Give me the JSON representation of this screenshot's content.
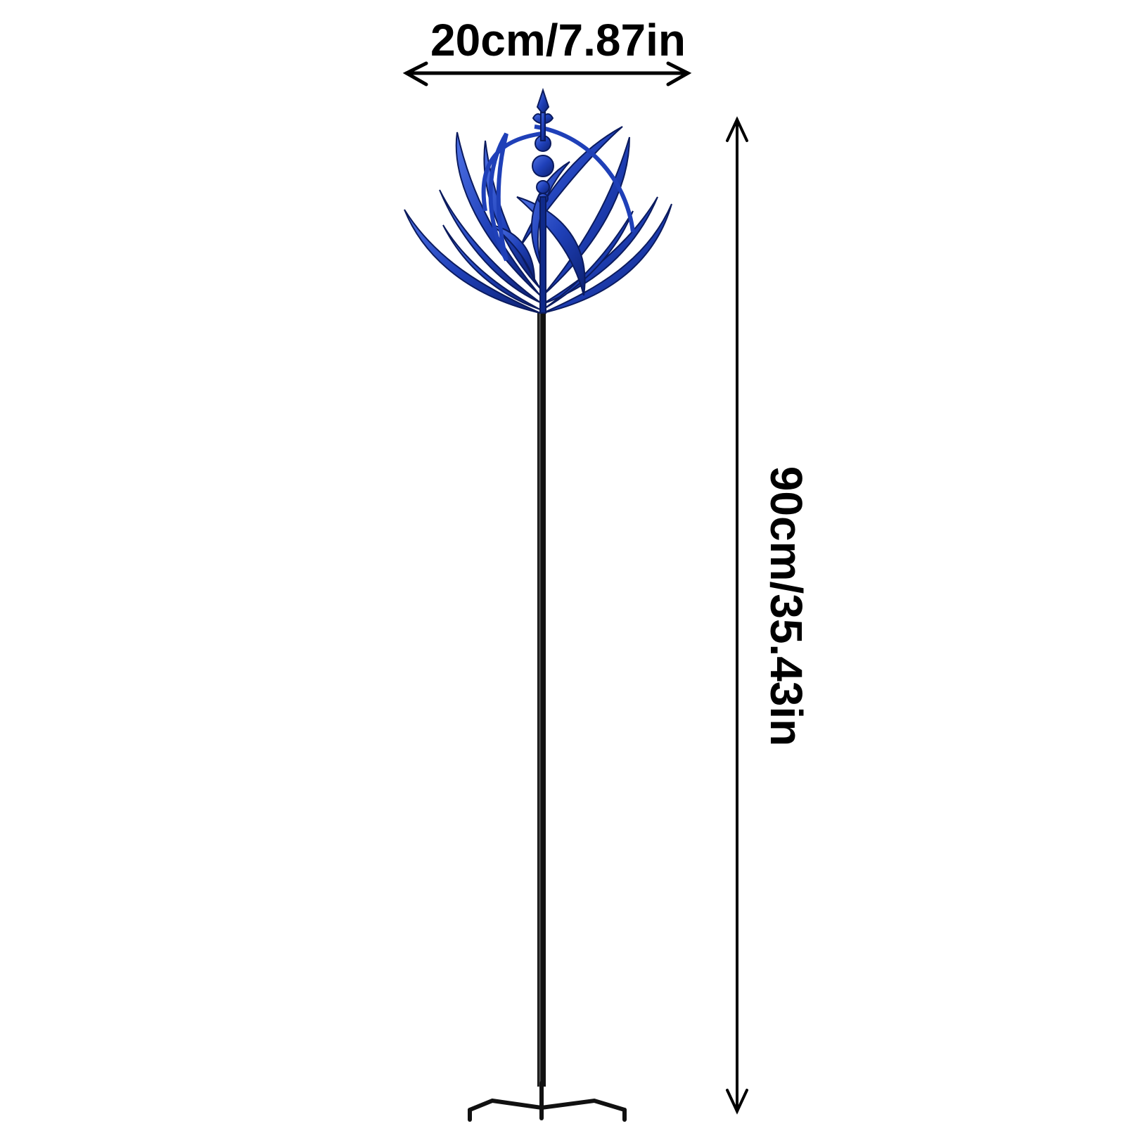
{
  "dimensions": {
    "width_label": "20cm/7.87in",
    "height_label": "90cm/35.43in"
  },
  "product": {
    "name_icon": "wind-spinner-icon",
    "spinner_color": "#1c3fb0",
    "pole_color": "#111111"
  },
  "icons": [
    "double-arrow-icon",
    "wind-spinner-icon"
  ]
}
